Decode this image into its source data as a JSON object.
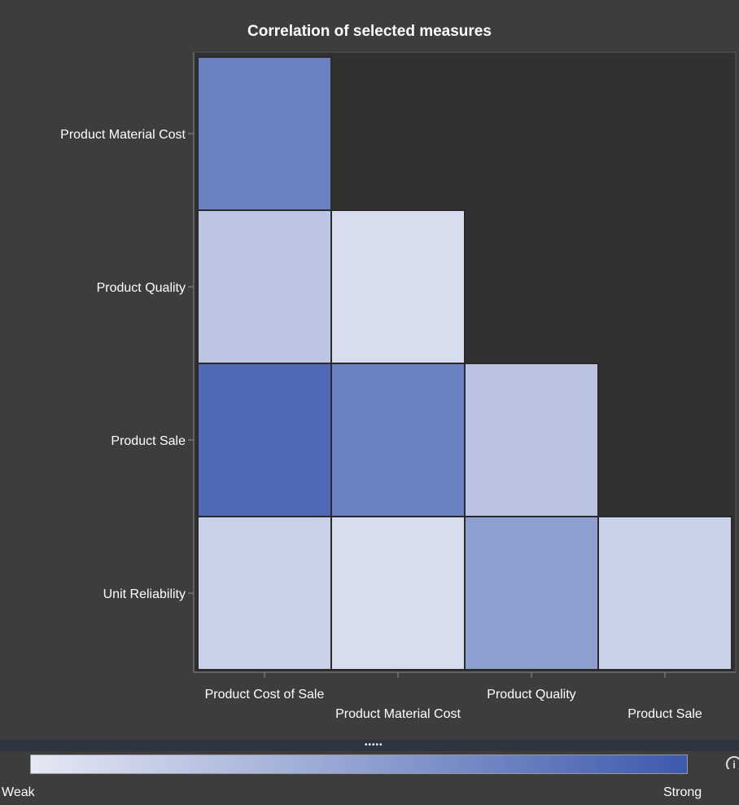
{
  "chart_data": {
    "type": "heatmap",
    "title": "Correlation of selected measures",
    "x_categories": [
      "Product Cost of Sale",
      "Product Material Cost",
      "Product Quality",
      "Product Sale"
    ],
    "y_categories": [
      "Product Material Cost",
      "Product Quality",
      "Product Sale",
      "Unit Reliability"
    ],
    "values": [
      [
        0.72,
        null,
        null,
        null
      ],
      [
        0.25,
        0.08,
        null,
        null
      ],
      [
        0.88,
        0.72,
        0.26,
        null
      ],
      [
        0.17,
        0.08,
        0.52,
        0.17
      ]
    ],
    "color_scale": {
      "min_label": "Weak",
      "max_label": "Strong",
      "min_color": "#e6e9f4",
      "max_color": "#3d59ad"
    },
    "grid": false
  },
  "colors": {
    "background": "#3d3d3d",
    "plot_background": "#313131",
    "cell_border": "#2a2a2a",
    "axis": "#8a8a8a",
    "text": "#ffffff"
  },
  "legend": {
    "grip": "•••••",
    "info_icon": "info-icon"
  }
}
